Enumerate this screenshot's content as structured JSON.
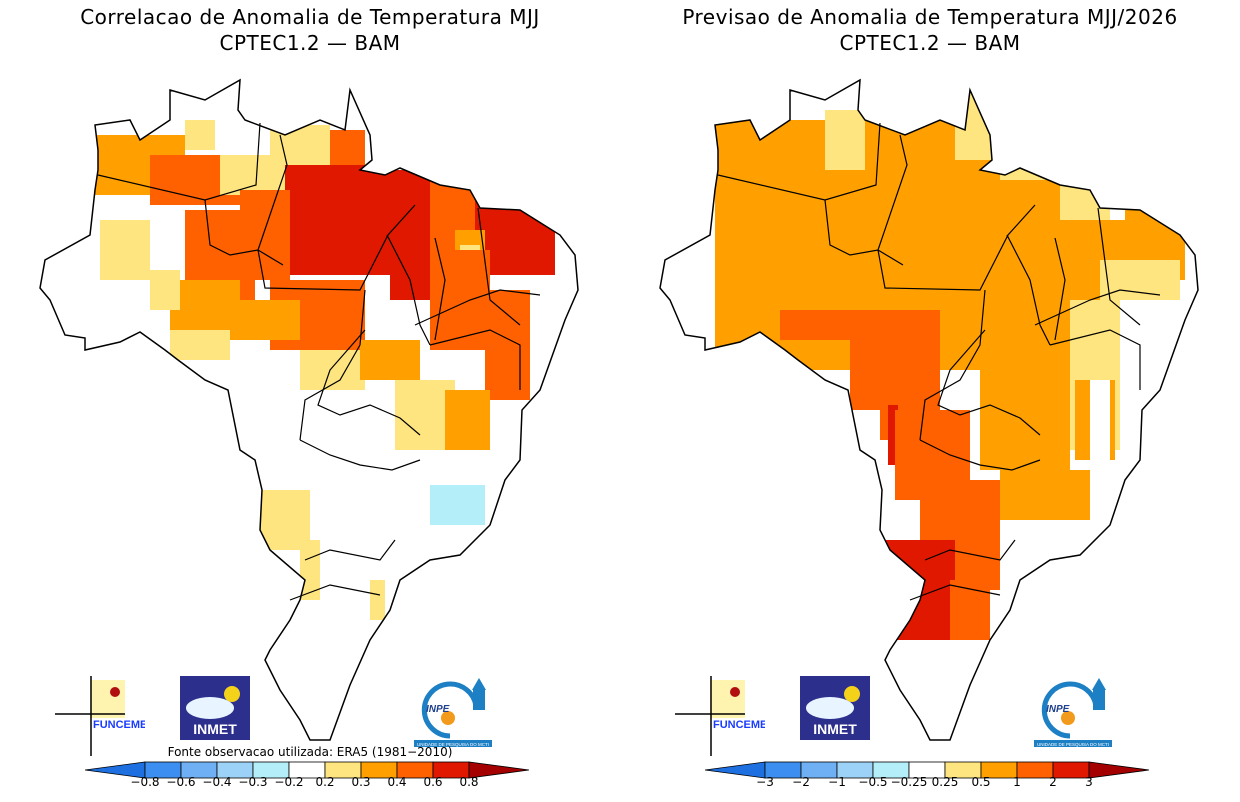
{
  "panels": [
    {
      "id": "left",
      "title_line1": "Correlacao de Anomalia de Temperatura MJJ",
      "title_line2": "CPTEC1.2 — BAM",
      "source_note": "Fonte observacao utilizada: ERA5 (1981−2010)",
      "colorbar": {
        "labels": [
          "−0.8",
          "−0.6",
          "−0.4",
          "−0.3",
          "−0.2",
          "0.2",
          "0.3",
          "0.4",
          "0.6",
          "0.8"
        ],
        "colors": [
          "#1e6fe0",
          "#3c8ff0",
          "#6fb0f5",
          "#9cd2f7",
          "#b4eef8",
          "#ffffff",
          "#ffe57f",
          "#ffa000",
          "#ff6000",
          "#e01800",
          "#a50000"
        ]
      },
      "legend_classes": {
        "w": "#ffffff",
        "y": "#ffe57f",
        "o": "#ffa000",
        "r": "#ff6000",
        "d": "#e01800",
        "c": "#b4eef8"
      }
    },
    {
      "id": "right",
      "title_line1": "Previsao de Anomalia de Temperatura MJJ/2026",
      "title_line2": "CPTEC1.2 — BAM",
      "source_note": "",
      "colorbar": {
        "labels": [
          "−3",
          "−2",
          "−1",
          "−0.5",
          "−0.25",
          "0.25",
          "0.5",
          "1",
          "2",
          "3"
        ],
        "colors": [
          "#1e6fe0",
          "#3c8ff0",
          "#6fb0f5",
          "#9cd2f7",
          "#b4eef8",
          "#ffffff",
          "#ffe57f",
          "#ffa000",
          "#ff6000",
          "#e01800",
          "#a50000"
        ]
      }
    }
  ],
  "logos": {
    "funceme": "FUNCEME",
    "inmet": "INMET",
    "inpe": "INPE",
    "inpe_sub": "UNIDADE DE PESQUISA DO MCTI"
  },
  "chart_data": [
    {
      "type": "heatmap",
      "title": "Correlacao de Anomalia de Temperatura MJJ — CPTEC1.2 — BAM",
      "region": "Brazil",
      "quantity": "correlation",
      "class_bounds": [
        -0.8,
        -0.6,
        -0.4,
        -0.3,
        -0.2,
        0.2,
        0.3,
        0.4,
        0.6,
        0.8
      ],
      "note": "Fonte observacao utilizada: ERA5 (1981-2010)",
      "regions_summary": {
        "north_central_pa_mt_to": "0.6-0.8",
        "northeast_ce_rn_pb": "0.6-0.8",
        "amazonas_west": "0.4-0.6",
        "roraima_amapa": "0.2-0.4",
        "southeast_south": "-0.2-0.2",
        "rio_de_janeiro_area": "-0.3 to -0.2"
      }
    },
    {
      "type": "heatmap",
      "title": "Previsao de Anomalia de Temperatura MJJ/2026 — CPTEC1.2 — BAM",
      "region": "Brazil",
      "quantity": "temperature anomaly (°C)",
      "class_bounds": [
        -3,
        -2,
        -1,
        -0.5,
        -0.25,
        0.25,
        0.5,
        1,
        2,
        3
      ],
      "regions_summary": {
        "north_centerwest": "0.5-1",
        "mato_grosso_do_sul_parana_sc": "1-2",
        "rio_grande_do_sul_west": "2-3",
        "northeast_interior_minas": "0.25-0.5",
        "east_coast": "-0.25-0.25"
      }
    }
  ]
}
